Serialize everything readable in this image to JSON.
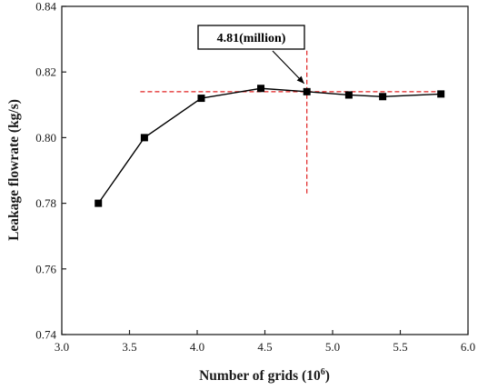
{
  "chart_data": {
    "type": "line",
    "title": "",
    "xlabel": "Number of grids (10",
    "xlabel_exponent": "6",
    "xlabel_close": ")",
    "ylabel": "Leakage flowrate (kg/s)",
    "xlim": [
      3.0,
      6.0
    ],
    "ylim": [
      0.74,
      0.84
    ],
    "x_ticks": [
      "3.0",
      "3.5",
      "4.0",
      "4.5",
      "5.0",
      "5.5",
      "6.0"
    ],
    "y_ticks": [
      "0.74",
      "0.76",
      "0.78",
      "0.80",
      "0.82",
      "0.84"
    ],
    "series": [
      {
        "marker": "square",
        "color": "#000000",
        "x": [
          3.27,
          3.61,
          4.03,
          4.47,
          4.81,
          5.12,
          5.37,
          5.8
        ],
        "y": [
          0.78,
          0.8,
          0.812,
          0.815,
          0.814,
          0.813,
          0.8125,
          0.8133
        ]
      }
    ],
    "annotation": {
      "text": "4.81(million)",
      "x": 4.81,
      "y": 0.814,
      "ref_line_color": "#e02020",
      "horizontal_ref_y": 0.814,
      "horizontal_ref_x_range": [
        3.58,
        5.82
      ],
      "vertical_ref_x": 4.81,
      "vertical_ref_y_range": [
        0.7825,
        0.8265
      ]
    },
    "grid": false,
    "legend": "none"
  }
}
